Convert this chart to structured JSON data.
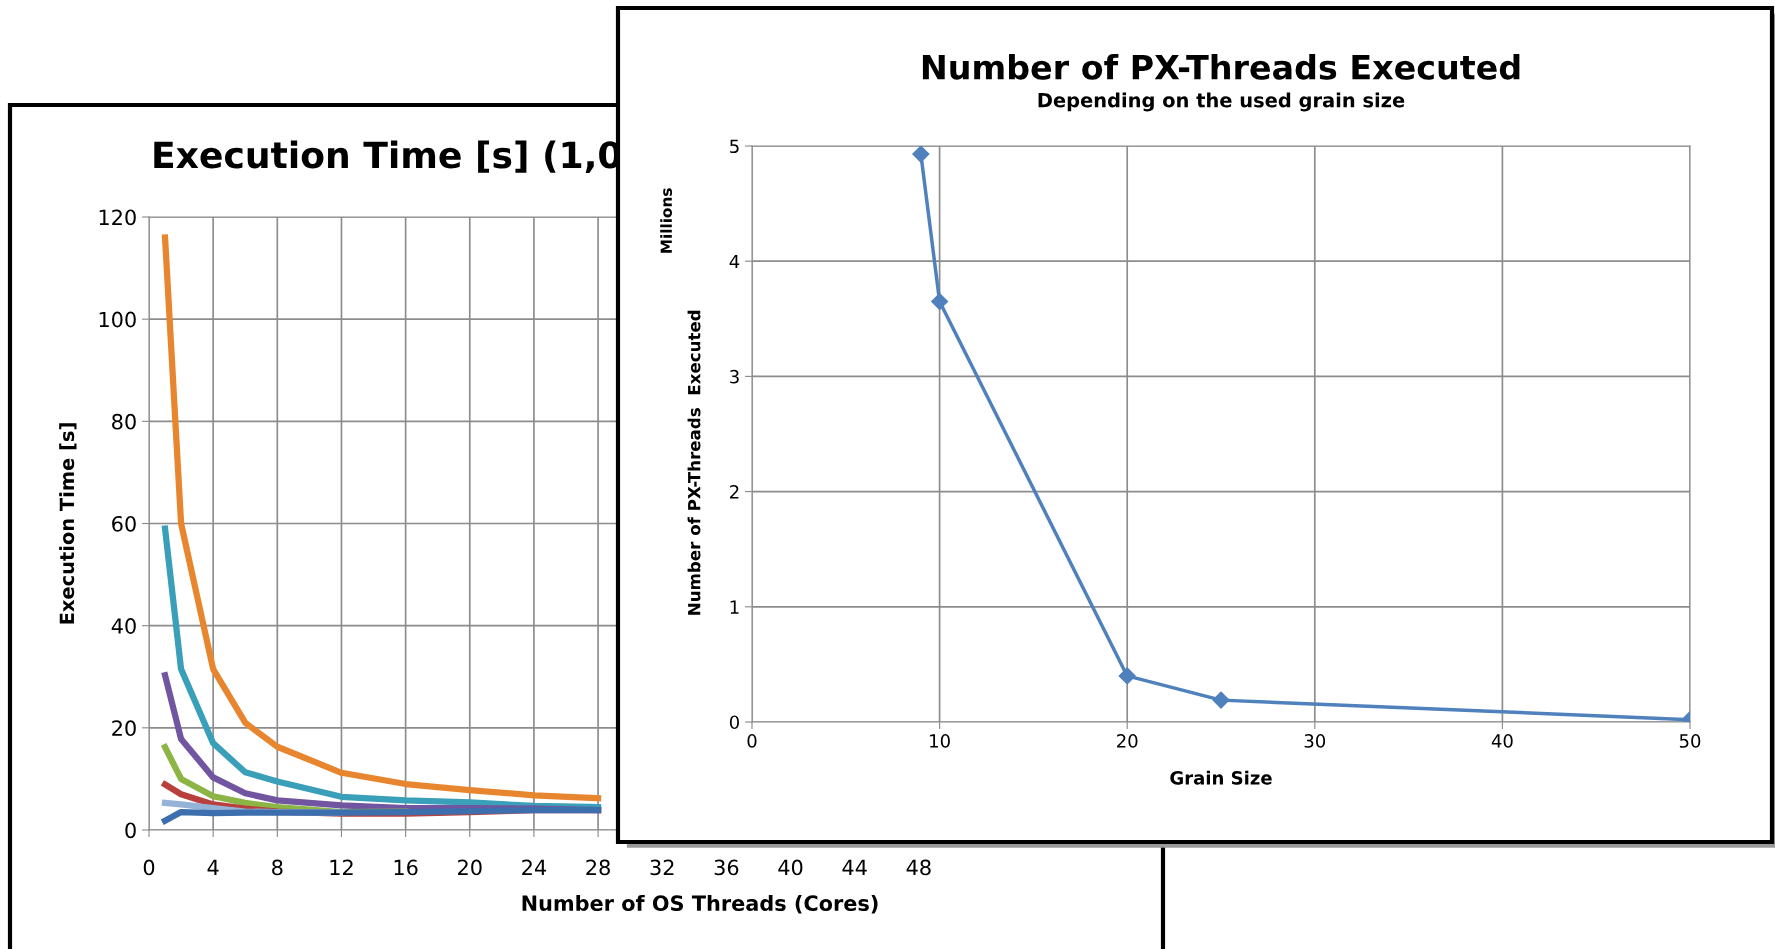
{
  "chart_data": [
    {
      "type": "line",
      "title": "Execution Time [s] (1,0",
      "xlabel": "Number of OS Threads (Cores)",
      "ylabel": "Execution Time [s]",
      "x": [
        1,
        2,
        4,
        6,
        8,
        12,
        16,
        20,
        24,
        28
      ],
      "xlim": [
        0,
        52
      ],
      "xticks": [
        0,
        4,
        8,
        12,
        16,
        20,
        24,
        28,
        32,
        36,
        40,
        44,
        48
      ],
      "ylim": [
        0,
        120
      ],
      "yticks": [
        0,
        20,
        40,
        60,
        80,
        100,
        120
      ],
      "grid": true,
      "legend": false,
      "marker": "none",
      "line_style": "solid",
      "series": [
        {
          "color": "#e8862f",
          "values": [
            116,
            60,
            31.5,
            21,
            16.3,
            11.2,
            9,
            7.8,
            6.8,
            6.2
          ]
        },
        {
          "color": "#3a9fb8",
          "values": [
            59,
            31.5,
            17,
            11.3,
            9.5,
            6.5,
            5.8,
            5.4,
            4.7,
            4.5
          ]
        },
        {
          "color": "#7155a0",
          "values": [
            30.3,
            17.8,
            10.3,
            7.2,
            5.8,
            4.8,
            4.3,
            4.3,
            4.2,
            3.9
          ]
        },
        {
          "color": "#8db545",
          "values": [
            16.2,
            10,
            6.6,
            5.3,
            4.5,
            3.5,
            3.6,
            null,
            null,
            null
          ]
        },
        {
          "color": "#b8413e",
          "values": [
            8.9,
            7,
            5,
            4.2,
            3.6,
            3.2,
            3.2,
            3.5,
            3.9,
            3.9
          ]
        },
        {
          "color": "#95b3d7",
          "values": [
            5.3,
            5,
            4.3,
            3.6,
            3.5,
            3.4,
            null,
            null,
            null,
            null
          ]
        },
        {
          "color": "#3d6eae",
          "values": [
            1.8,
            3.5,
            3.3,
            3.4,
            3.4,
            3.4,
            3.5,
            3.7,
            3.9,
            3.9
          ]
        }
      ]
    },
    {
      "type": "line",
      "title": "Number of PX-Threads Executed",
      "subtitle": "Depending on the used grain size",
      "xlabel": "Grain Size",
      "ylabel": "Number of PX-Threads  Executed",
      "annotations": [
        "Millions"
      ],
      "x": [
        9,
        10,
        20,
        25,
        50
      ],
      "xlim": [
        0,
        50
      ],
      "xticks": [
        0,
        10,
        20,
        30,
        40,
        50
      ],
      "ylim": [
        0,
        5
      ],
      "yticks": [
        0,
        1,
        2,
        3,
        4,
        5
      ],
      "grid": true,
      "legend": false,
      "marker": "diamond",
      "line_style": "solid",
      "series": [
        {
          "color": "#4f81bd",
          "values": [
            4.93,
            3.65,
            0.4,
            0.19,
            0.02
          ]
        }
      ]
    }
  ]
}
